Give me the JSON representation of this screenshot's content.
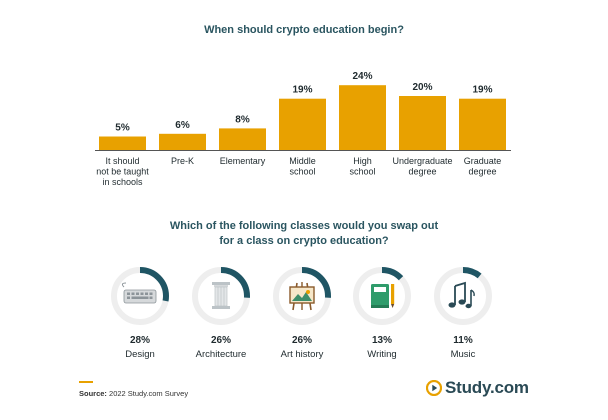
{
  "chart_data": [
    {
      "type": "bar",
      "title": "When should crypto education begin?",
      "categories": [
        [
          "It should",
          "not be taught",
          "in schools"
        ],
        [
          "Pre-K"
        ],
        [
          "Elementary"
        ],
        [
          "Middle",
          "school"
        ],
        [
          "High",
          "school"
        ],
        [
          "Undergraduate",
          "degree"
        ],
        [
          "Graduate",
          "degree"
        ]
      ],
      "values": [
        5,
        6,
        8,
        19,
        24,
        20,
        19
      ],
      "value_labels": [
        "5%",
        "6%",
        "8%",
        "19%",
        "24%",
        "20%",
        "19%"
      ],
      "unit": "%",
      "color": "#e8a100",
      "grid": false
    },
    {
      "type": "pie",
      "title": [
        "Which of the following classes would you swap out",
        "for a class on crypto education?"
      ],
      "categories": [
        "Design",
        "Architecture",
        "Art history",
        "Writing",
        "Music"
      ],
      "values": [
        28,
        26,
        26,
        13,
        11
      ],
      "value_labels": [
        "28%",
        "26%",
        "26%",
        "13%",
        "11%"
      ],
      "icons": [
        "keyboard-icon",
        "column-icon",
        "easel-icon",
        "notebook-pen-icon",
        "music-notes-icon"
      ],
      "ring_color": "#1f5564",
      "track_color": "#eeeeee"
    }
  ],
  "source": {
    "prefix": "Source:",
    "text": " 2022 Study.com Survey"
  },
  "logo": {
    "text": "Study.com",
    "color": "#2a4a55",
    "accent": "#e8a100"
  }
}
